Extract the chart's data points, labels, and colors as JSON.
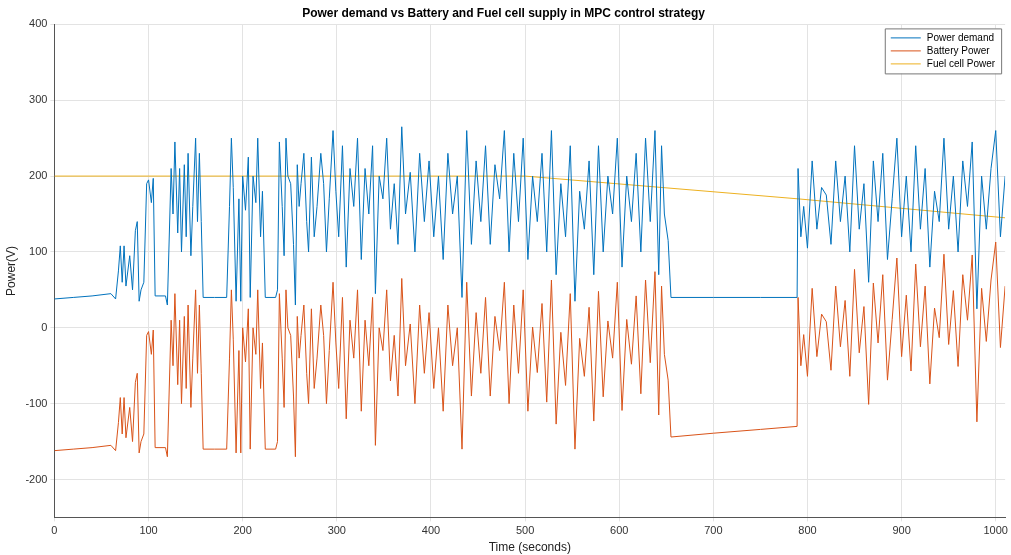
{
  "chart_data": {
    "type": "line",
    "title": "Power demand vs Battery and Fuel cell supply in MPC control strategy",
    "xlabel": "Time (seconds)",
    "ylabel": "Power(V)",
    "x": [
      0,
      20,
      40,
      60,
      65,
      68,
      70,
      72,
      74,
      76,
      80,
      83,
      86,
      88,
      90,
      92,
      95,
      98,
      100,
      103,
      105,
      107,
      118,
      120,
      124,
      126,
      128,
      131,
      133,
      135,
      138,
      140,
      142,
      145,
      147,
      150,
      152,
      154,
      156,
      158,
      170,
      183,
      186,
      188,
      190,
      193,
      196,
      198,
      200,
      203,
      206,
      208,
      211,
      214,
      216,
      219,
      221,
      224,
      235,
      237,
      239,
      242,
      244,
      246,
      248,
      251,
      254,
      256,
      258,
      260,
      262,
      265,
      268,
      270,
      273,
      276,
      279,
      283,
      286,
      289,
      292,
      296,
      299,
      302,
      306,
      310,
      314,
      318,
      322,
      326,
      330,
      334,
      338,
      341,
      345,
      349,
      353,
      357,
      361,
      365,
      369,
      373,
      378,
      383,
      388,
      393,
      398,
      403,
      408,
      413,
      418,
      423,
      428,
      433,
      438,
      443,
      448,
      453,
      458,
      463,
      468,
      473,
      478,
      483,
      488,
      493,
      498,
      503,
      508,
      513,
      518,
      523,
      528,
      533,
      538,
      543,
      548,
      553,
      558,
      563,
      568,
      573,
      578,
      583,
      588,
      593,
      598,
      603,
      608,
      613,
      618,
      623,
      628,
      633,
      638,
      642,
      645,
      648,
      652,
      655,
      700,
      750,
      789,
      790,
      793,
      796,
      800,
      805,
      810,
      815,
      820,
      825,
      830,
      835,
      840,
      845,
      850,
      855,
      860,
      865,
      870,
      875,
      880,
      885,
      890,
      895,
      900,
      905,
      910,
      915,
      920,
      925,
      930,
      935,
      940,
      945,
      950,
      955,
      960,
      965,
      970,
      975,
      980,
      985,
      990,
      995,
      1000,
      1005,
      1010
    ],
    "series": [
      {
        "name": "Power demand",
        "color": "#0072bd",
        "values": [
          38,
          40,
          42,
          45,
          38,
          75,
          108,
          60,
          108,
          55,
          95,
          50,
          128,
          140,
          35,
          50,
          60,
          190,
          195,
          165,
          197,
          42,
          42,
          30,
          210,
          150,
          245,
          125,
          210,
          100,
          215,
          120,
          230,
          95,
          160,
          250,
          140,
          230,
          140,
          40,
          40,
          40,
          160,
          250,
          185,
          35,
          170,
          35,
          200,
          155,
          225,
          40,
          200,
          165,
          250,
          120,
          180,
          40,
          40,
          50,
          245,
          160,
          95,
          250,
          200,
          190,
          110,
          30,
          215,
          160,
          190,
          230,
          140,
          100,
          225,
          120,
          160,
          230,
          190,
          100,
          170,
          260,
          180,
          120,
          240,
          80,
          210,
          160,
          250,
          90,
          210,
          150,
          240,
          45,
          200,
          170,
          250,
          130,
          190,
          110,
          265,
          150,
          205,
          100,
          230,
          140,
          220,
          120,
          200,
          90,
          230,
          150,
          200,
          40,
          260,
          110,
          220,
          140,
          240,
          110,
          215,
          170,
          260,
          100,
          230,
          140,
          250,
          90,
          200,
          140,
          230,
          100,
          260,
          70,
          190,
          120,
          240,
          35,
          180,
          130,
          220,
          70,
          240,
          100,
          200,
          150,
          250,
          80,
          200,
          140,
          230,
          100,
          250,
          140,
          260,
          70,
          240,
          150,
          115,
          40,
          40,
          40,
          40,
          210,
          120,
          160,
          105,
          220,
          130,
          185,
          175,
          110,
          220,
          140,
          200,
          100,
          240,
          130,
          190,
          60,
          220,
          140,
          230,
          90,
          170,
          250,
          120,
          200,
          100,
          240,
          130,
          210,
          80,
          180,
          140,
          250,
          130,
          200,
          100,
          220,
          160,
          245,
          25,
          200,
          130,
          210,
          260,
          120,
          200
        ]
      },
      {
        "name": "Battery Power",
        "color": "#d95319",
        "values": [
          -162,
          -160,
          -158,
          -155,
          -162,
          -125,
          -92,
          -140,
          -92,
          -145,
          -105,
          -150,
          -72,
          -60,
          -165,
          -150,
          -140,
          -10,
          -5,
          -35,
          -3,
          -158,
          -158,
          -170,
          10,
          -50,
          45,
          -75,
          10,
          -100,
          15,
          -80,
          30,
          -105,
          -40,
          50,
          -60,
          30,
          -60,
          -160,
          -160,
          -160,
          -40,
          50,
          -15,
          -165,
          -30,
          -165,
          0,
          -45,
          25,
          -160,
          0,
          -35,
          50,
          -80,
          -20,
          -160,
          -160,
          -150,
          45,
          -40,
          -105,
          50,
          0,
          -10,
          -90,
          -170,
          15,
          -40,
          -10,
          30,
          -60,
          -100,
          25,
          -80,
          -40,
          30,
          -10,
          -100,
          -30,
          60,
          -20,
          -80,
          40,
          -120,
          10,
          -40,
          50,
          -110,
          10,
          -50,
          40,
          -155,
          0,
          -30,
          50,
          -70,
          -10,
          -90,
          65,
          -50,
          5,
          -100,
          30,
          -60,
          20,
          -80,
          0,
          -110,
          30,
          -50,
          0,
          -160,
          60,
          -90,
          20,
          -60,
          40,
          -90,
          15,
          -30,
          60,
          -100,
          30,
          -60,
          50,
          -110,
          1,
          -59,
          32,
          -98,
          63,
          -127,
          -6,
          -76,
          45,
          -160,
          -14,
          -64,
          27,
          -123,
          48,
          -91,
          9,
          -40,
          60,
          -109,
          11,
          -48,
          42,
          -87,
          63,
          -46,
          74,
          -115,
          55,
          -35,
          -69,
          -144,
          -139,
          -134,
          -130,
          40,
          -50,
          -9,
          -64,
          52,
          -38,
          18,
          8,
          -56,
          55,
          -25,
          36,
          -64,
          77,
          -33,
          28,
          -101,
          59,
          -20,
          70,
          -69,
          11,
          92,
          -38,
          43,
          -57,
          84,
          -25,
          55,
          -74,
          26,
          -13,
          97,
          -22,
          49,
          -51,
          70,
          10,
          96,
          -124,
          52,
          -18,
          63,
          113,
          -26,
          55
        ]
      },
      {
        "name": "Fuel cell Power",
        "color": "#edb120",
        "x": [
          0,
          500,
          790,
          1010
        ],
        "values": [
          200,
          200,
          170,
          145
        ]
      }
    ],
    "xlim": [
      0,
      1010
    ],
    "xticks": [
      0,
      100,
      200,
      300,
      400,
      500,
      600,
      700,
      800,
      900,
      1000
    ],
    "ylim": [
      -250,
      400
    ],
    "yticks": [
      -200,
      -100,
      0,
      100,
      200,
      300,
      400
    ],
    "grid": true,
    "legend": "top right",
    "marker": "none",
    "line_style": "solid"
  }
}
